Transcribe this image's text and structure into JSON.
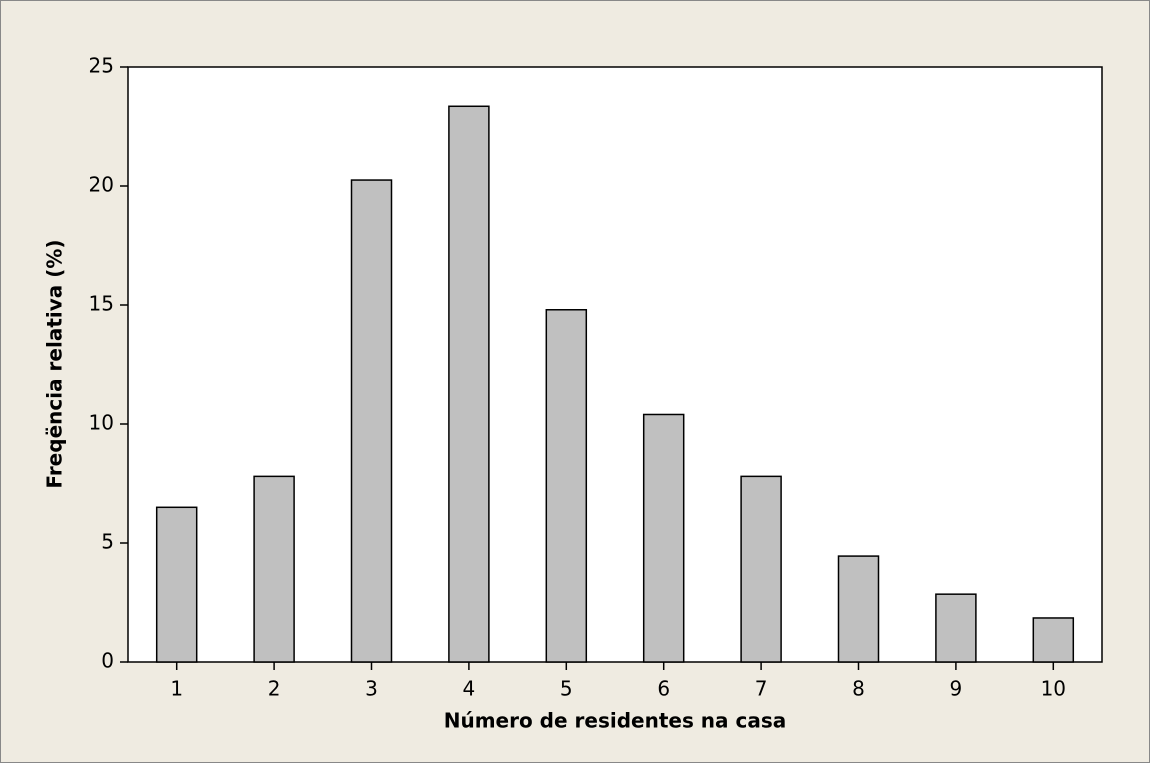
{
  "chart_data": {
    "type": "bar",
    "xlabel": "Número de residentes na casa",
    "ylabel": "Freqëncia relativa (%)",
    "categories": [
      "1",
      "2",
      "3",
      "4",
      "5",
      "6",
      "7",
      "8",
      "9",
      "10"
    ],
    "values": [
      6.5,
      7.8,
      20.25,
      23.35,
      14.8,
      10.4,
      7.8,
      4.45,
      2.85,
      1.85
    ],
    "color": "#c0c0c0",
    "ylim": [
      0,
      25
    ],
    "yticks": [
      0,
      5,
      10,
      15,
      20,
      25
    ],
    "grid": false
  }
}
